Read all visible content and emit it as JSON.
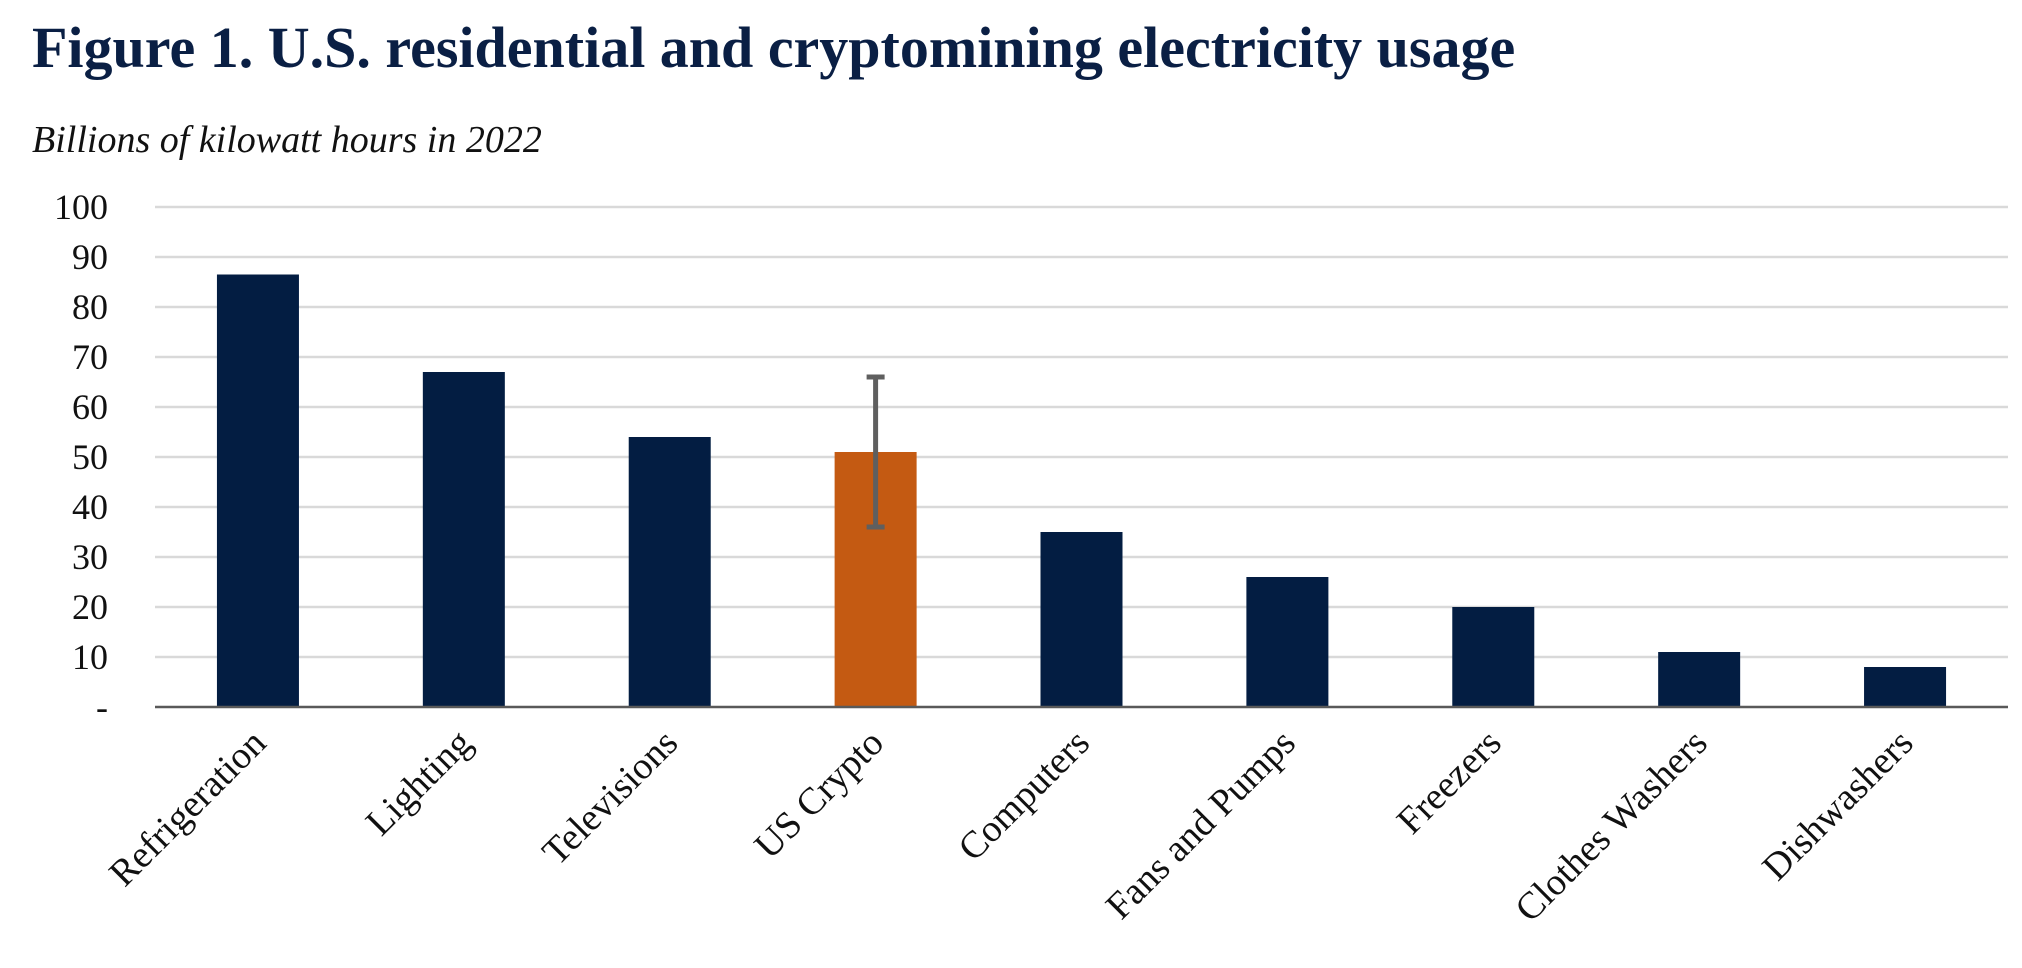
{
  "chart_data": {
    "type": "bar",
    "title": "Figure 1. U.S. residential and cryptomining electricity usage",
    "subtitle": "Billions of kilowatt hours in 2022",
    "xlabel": "",
    "ylabel": "",
    "ylim": [
      0,
      100
    ],
    "yticks": [
      0,
      10,
      20,
      30,
      40,
      50,
      60,
      70,
      80,
      90,
      100
    ],
    "ytick_labels": [
      "-",
      "10",
      "20",
      "30",
      "40",
      "50",
      "60",
      "70",
      "80",
      "90",
      "100"
    ],
    "grid": true,
    "categories": [
      "Refrigeration",
      "Lighting",
      "Televisions",
      "US Crypto",
      "Computers",
      "Fans and Pumps",
      "Freezers",
      "Clothes Washers",
      "Dishwashers"
    ],
    "values": [
      86.5,
      67,
      54,
      51,
      35,
      26,
      20,
      11,
      8
    ],
    "error_bars": [
      {
        "category": "US Crypto",
        "low": 36,
        "high": 66
      }
    ],
    "highlight": "US Crypto",
    "colors": {
      "bar": "#031d42",
      "highlight": "#c45a12",
      "error": "#5f5f5f",
      "grid": "#d9d9d9",
      "axis": "#595959",
      "title": "#0a1f44"
    }
  }
}
